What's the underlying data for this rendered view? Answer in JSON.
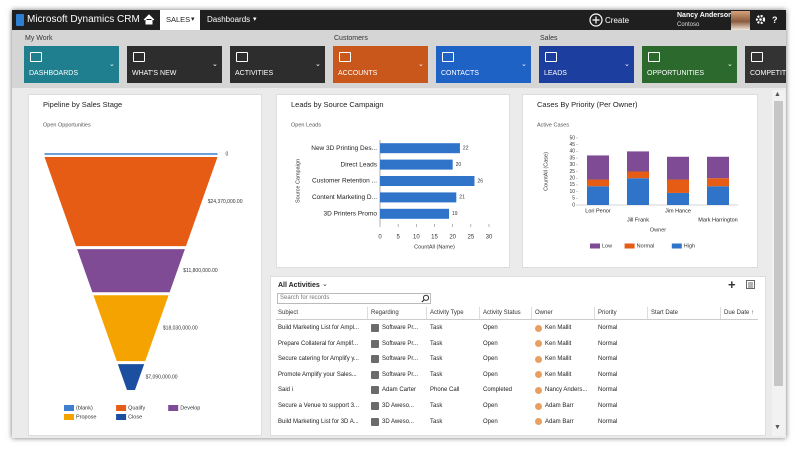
{
  "header": {
    "app_name": "Microsoft Dynamics CRM",
    "area": "SALES",
    "section": "Dashboards",
    "create": "Create",
    "user_name": "Nancy Anderson",
    "organization": "Contoso"
  },
  "nav": {
    "groups": [
      {
        "label": "My Work",
        "tiles": [
          {
            "label": "DASHBOARDS",
            "color": "#1f7f8e"
          },
          {
            "label": "WHAT'S NEW",
            "color": "#2d2d2d"
          },
          {
            "label": "ACTIVITIES",
            "color": "#2d2d2d"
          }
        ]
      },
      {
        "label": "Customers",
        "tiles": [
          {
            "label": "ACCOUNTS",
            "color": "#c9561a"
          },
          {
            "label": "CONTACTS",
            "color": "#1f62c6"
          }
        ]
      },
      {
        "label": "Sales",
        "tiles": [
          {
            "label": "LEADS",
            "color": "#1c3e9e"
          },
          {
            "label": "OPPORTUNITIES",
            "color": "#2b6a2c"
          },
          {
            "label": "COMPETITORS",
            "color": "#333333"
          }
        ]
      }
    ]
  },
  "chart_data": [
    {
      "type": "funnel",
      "title": "Pipeline by Sales Stage",
      "subtitle": "Open Opportunities",
      "categories": [
        "(blank)",
        "Qualify",
        "Develop",
        "Propose",
        "Close"
      ],
      "values": [
        0,
        24370000,
        11800000,
        18030000,
        7090000
      ],
      "value_labels": [
        "0",
        "$24,370,000.00",
        "$11,800,000.00",
        "$18,030,000.00",
        "$7,090,000.00"
      ],
      "colors": [
        "#3f7fd0",
        "#e65c14",
        "#7f4b95",
        "#f5a300",
        "#1c4fa0"
      ]
    },
    {
      "type": "bar",
      "orientation": "horizontal",
      "title": "Leads by Source Campaign",
      "subtitle": "Open Leads",
      "categories": [
        "New 3D Printing Des...",
        "Direct Leads",
        "Customer Retention ...",
        "Content Marketing D...",
        "3D Printers Promo"
      ],
      "values": [
        22,
        20,
        26,
        21,
        19
      ],
      "color": "#2f74c9",
      "xlim": [
        0,
        30
      ],
      "xticks": [
        0,
        5,
        10,
        15,
        20,
        25,
        30
      ],
      "xlabel": "CountAll (Name)",
      "ylabel": "Source Campaign"
    },
    {
      "type": "stacked_bar",
      "title": "Cases By Priority (Per Owner)",
      "subtitle": "Active Cases",
      "categories": [
        "Lori Penor",
        "Jill Frank",
        "Jim Hance",
        "Mark Harrington"
      ],
      "series": [
        {
          "name": "Low",
          "color": "#7f4b95",
          "values": [
            18,
            15,
            17,
            16
          ]
        },
        {
          "name": "Normal",
          "color": "#e65c14",
          "values": [
            5,
            5,
            10,
            6
          ]
        },
        {
          "name": "High",
          "color": "#2f74c9",
          "values": [
            14,
            20,
            9,
            14
          ]
        }
      ],
      "ylim": [
        0,
        50
      ],
      "yticks": [
        0,
        5,
        10,
        15,
        20,
        25,
        30,
        35,
        40,
        45,
        50
      ],
      "xlabel": "Owner",
      "ylabel": "CountAll (Case)"
    }
  ],
  "activities": {
    "title": "All Activities",
    "search_placeholder": "Search for records",
    "columns": [
      "Subject",
      "Regarding",
      "Activity Type",
      "Activity Status",
      "Owner",
      "Priority",
      "Start Date",
      "Due Date"
    ],
    "rows": [
      [
        "Build Marketing List for Ampl...",
        "Software Pr...",
        "Task",
        "Open",
        "Ken Mallit",
        "Normal"
      ],
      [
        "Prepare Collateral for Amplif...",
        "Software Pr...",
        "Task",
        "Open",
        "Ken Mallit",
        "Normal"
      ],
      [
        "Secure catering for Amplify y...",
        "Software Pr...",
        "Task",
        "Open",
        "Ken Mallit",
        "Normal"
      ],
      [
        "Promote Amplify your Sales...",
        "Software Pr...",
        "Task",
        "Open",
        "Ken Mallit",
        "Normal"
      ],
      [
        "Said i",
        "Adam Carter",
        "Phone Call",
        "Completed",
        "Nancy Anders...",
        "Normal"
      ],
      [
        "Secure a Venue to support 3...",
        "3D Aweso...",
        "Task",
        "Open",
        "Adam Barr",
        "Normal"
      ],
      [
        "Build Marketing List for 3D A...",
        "3D Aweso...",
        "Task",
        "Open",
        "Adam Barr",
        "Normal"
      ]
    ]
  }
}
